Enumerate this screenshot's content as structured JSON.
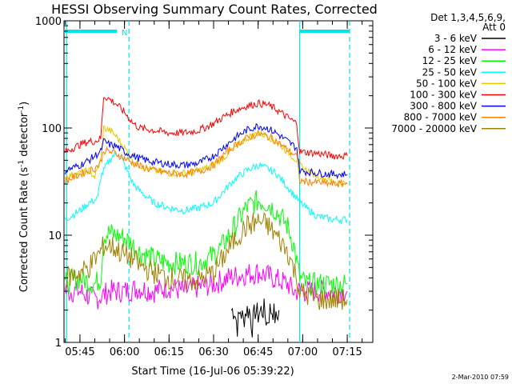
{
  "chart_data": {
    "type": "line",
    "title": "HESSI Observing Summary Count Rates, Corrected",
    "xlabel": "Start Time (16-Jul-06 05:39:22)",
    "ylabel_main": "Corrected Count Rate (s",
    "ylabel_sup1": "-1",
    "ylabel_mid": " detector",
    "ylabel_sup2": "-1",
    "ylabel_end": ")",
    "yscale": "log",
    "ylim": [
      1,
      1000
    ],
    "xlim_minutes": [
      -5.37,
      98.6
    ],
    "x_ticks": [
      {
        "label": "05:45",
        "minute": 0
      },
      {
        "label": "06:00",
        "minute": 15
      },
      {
        "label": "06:15",
        "minute": 30
      },
      {
        "label": "06:30",
        "minute": 45
      },
      {
        "label": "06:45",
        "minute": 60
      },
      {
        "label": "07:00",
        "minute": 75
      },
      {
        "label": "07:15",
        "minute": 90
      }
    ],
    "y_ticks": [
      {
        "label": "1",
        "value": 1
      },
      {
        "label": "10",
        "value": 10
      },
      {
        "label": "100",
        "value": 100
      },
      {
        "label": "1000",
        "value": 1000
      }
    ],
    "legend_title_line1": "Det 1,3,4,5,6,9,",
    "legend_title_line2": "Att 0",
    "legend_placement": "right",
    "annotation_n": "N",
    "footer_date": "2-Mar-2010 07:59",
    "vertical_lines_minutes": [
      {
        "minute": -4.5,
        "style": "solid",
        "color": "#00e6e6"
      },
      {
        "minute": 16.5,
        "style": "dashed",
        "color": "#00e6e6"
      },
      {
        "minute": 74.0,
        "style": "solid",
        "color": "#00e6e6"
      },
      {
        "minute": 90.8,
        "style": "dashed",
        "color": "#00e6e6"
      }
    ],
    "top_bars": [
      {
        "x0": -5.4,
        "x1": 12.5,
        "value": 800
      },
      {
        "x0": 74.0,
        "x1": 90.8,
        "value": 800
      }
    ],
    "series": [
      {
        "name": "3 - 6 keV",
        "color": "#000000",
        "points": [
          [
            51,
            2
          ],
          [
            52,
            2
          ],
          [
            53,
            1.4
          ],
          [
            54,
            2
          ],
          [
            55,
            1.6
          ],
          [
            56,
            2
          ],
          [
            57,
            2
          ],
          [
            58,
            1.4
          ],
          [
            59,
            2
          ],
          [
            60,
            1.8
          ],
          [
            61,
            2
          ],
          [
            62,
            2
          ],
          [
            63,
            1.5
          ],
          [
            64,
            2
          ],
          [
            65,
            2
          ],
          [
            66,
            1.6
          ],
          [
            67,
            2
          ]
        ]
      },
      {
        "name": "6 - 12 keV",
        "color": "#ff00ff",
        "points": [
          [
            -5,
            3
          ],
          [
            0,
            3
          ],
          [
            5,
            2.5
          ],
          [
            10,
            3
          ],
          [
            15,
            3
          ],
          [
            20,
            3.2
          ],
          [
            25,
            3
          ],
          [
            30,
            3.3
          ],
          [
            35,
            3
          ],
          [
            40,
            3.3
          ],
          [
            45,
            3.5
          ],
          [
            50,
            4
          ],
          [
            55,
            4.3
          ],
          [
            60,
            4.5
          ],
          [
            65,
            4
          ],
          [
            70,
            3.5
          ],
          [
            72,
            3
          ],
          [
            75,
            3
          ],
          [
            80,
            3
          ],
          [
            85,
            3
          ],
          [
            90,
            3
          ]
        ]
      },
      {
        "name": "12 - 25 keV",
        "color": "#00ff00",
        "points": [
          [
            -5,
            3.5
          ],
          [
            0,
            4
          ],
          [
            5,
            3.5
          ],
          [
            7,
            4
          ],
          [
            8,
            10
          ],
          [
            10,
            10.5
          ],
          [
            12,
            10
          ],
          [
            15,
            9.5
          ],
          [
            18,
            8
          ],
          [
            20,
            7
          ],
          [
            25,
            6
          ],
          [
            30,
            5.5
          ],
          [
            35,
            5.5
          ],
          [
            40,
            5.5
          ],
          [
            45,
            6.5
          ],
          [
            48,
            8
          ],
          [
            52,
            12
          ],
          [
            56,
            18
          ],
          [
            60,
            21
          ],
          [
            63,
            20
          ],
          [
            66,
            17
          ],
          [
            70,
            12
          ],
          [
            72,
            8
          ],
          [
            74,
            4
          ],
          [
            76,
            3.5
          ],
          [
            80,
            3.5
          ],
          [
            85,
            3.5
          ],
          [
            90,
            3.5
          ]
        ]
      },
      {
        "name": "25 - 50 keV",
        "color": "#00ffff",
        "points": [
          [
            -5,
            14
          ],
          [
            0,
            17
          ],
          [
            3,
            20
          ],
          [
            6,
            22
          ],
          [
            7,
            35
          ],
          [
            9,
            45
          ],
          [
            11,
            55
          ],
          [
            13,
            58
          ],
          [
            15,
            45
          ],
          [
            18,
            30
          ],
          [
            20,
            26
          ],
          [
            25,
            20
          ],
          [
            30,
            18
          ],
          [
            35,
            17
          ],
          [
            40,
            18
          ],
          [
            45,
            20
          ],
          [
            48,
            25
          ],
          [
            52,
            33
          ],
          [
            56,
            40
          ],
          [
            60,
            45
          ],
          [
            63,
            42
          ],
          [
            66,
            38
          ],
          [
            70,
            28
          ],
          [
            73,
            22
          ],
          [
            76,
            18
          ],
          [
            80,
            15
          ],
          [
            85,
            14
          ],
          [
            90,
            14
          ]
        ]
      },
      {
        "name": "50 - 100 keV",
        "color": "#e6c800",
        "points": [
          [
            -5,
            35
          ],
          [
            0,
            38
          ],
          [
            3,
            40
          ],
          [
            5,
            35
          ],
          [
            7,
            50
          ],
          [
            8,
            100
          ],
          [
            10,
            95
          ],
          [
            12,
            85
          ],
          [
            15,
            65
          ],
          [
            18,
            50
          ],
          [
            20,
            45
          ],
          [
            25,
            40
          ],
          [
            30,
            38
          ],
          [
            35,
            38
          ],
          [
            40,
            40
          ],
          [
            45,
            45
          ],
          [
            48,
            52
          ],
          [
            52,
            65
          ],
          [
            56,
            80
          ],
          [
            60,
            90
          ],
          [
            63,
            85
          ],
          [
            66,
            75
          ],
          [
            70,
            60
          ],
          [
            73,
            50
          ],
          [
            75,
            42
          ],
          [
            80,
            36
          ],
          [
            85,
            32
          ],
          [
            90,
            30
          ]
        ]
      },
      {
        "name": "100 - 300 keV",
        "color": "#ff0000",
        "points": [
          [
            -5,
            60
          ],
          [
            0,
            70
          ],
          [
            3,
            75
          ],
          [
            5,
            75
          ],
          [
            7,
            80
          ],
          [
            8,
            200
          ],
          [
            10,
            185
          ],
          [
            12,
            170
          ],
          [
            15,
            140
          ],
          [
            18,
            110
          ],
          [
            20,
            100
          ],
          [
            25,
            95
          ],
          [
            30,
            90
          ],
          [
            35,
            90
          ],
          [
            40,
            95
          ],
          [
            45,
            110
          ],
          [
            48,
            125
          ],
          [
            52,
            145
          ],
          [
            56,
            160
          ],
          [
            60,
            170
          ],
          [
            63,
            165
          ],
          [
            66,
            150
          ],
          [
            70,
            125
          ],
          [
            73,
            110
          ],
          [
            74,
            60
          ],
          [
            80,
            58
          ],
          [
            85,
            55
          ],
          [
            90,
            55
          ]
        ]
      },
      {
        "name": "300 - 800 keV",
        "color": "#0000ff",
        "points": [
          [
            -5,
            40
          ],
          [
            0,
            45
          ],
          [
            3,
            50
          ],
          [
            5,
            55
          ],
          [
            7,
            60
          ],
          [
            8,
            75
          ],
          [
            10,
            70
          ],
          [
            12,
            68
          ],
          [
            15,
            60
          ],
          [
            18,
            55
          ],
          [
            20,
            52
          ],
          [
            25,
            48
          ],
          [
            30,
            46
          ],
          [
            35,
            45
          ],
          [
            40,
            47
          ],
          [
            45,
            55
          ],
          [
            48,
            65
          ],
          [
            52,
            80
          ],
          [
            56,
            95
          ],
          [
            60,
            105
          ],
          [
            63,
            100
          ],
          [
            66,
            90
          ],
          [
            70,
            75
          ],
          [
            73,
            65
          ],
          [
            74,
            40
          ],
          [
            80,
            38
          ],
          [
            85,
            37
          ],
          [
            90,
            37
          ]
        ]
      },
      {
        "name": "800 - 7000 keV",
        "color": "#ff8000",
        "points": [
          [
            -5,
            32
          ],
          [
            0,
            37
          ],
          [
            3,
            40
          ],
          [
            5,
            42
          ],
          [
            7,
            48
          ],
          [
            8,
            62
          ],
          [
            10,
            60
          ],
          [
            12,
            58
          ],
          [
            15,
            52
          ],
          [
            18,
            47
          ],
          [
            20,
            44
          ],
          [
            25,
            40
          ],
          [
            30,
            38
          ],
          [
            35,
            37
          ],
          [
            40,
            39
          ],
          [
            45,
            45
          ],
          [
            48,
            55
          ],
          [
            52,
            68
          ],
          [
            56,
            80
          ],
          [
            60,
            88
          ],
          [
            63,
            84
          ],
          [
            66,
            76
          ],
          [
            70,
            62
          ],
          [
            73,
            55
          ],
          [
            74,
            32
          ],
          [
            80,
            31
          ],
          [
            85,
            30
          ],
          [
            90,
            30
          ]
        ]
      },
      {
        "name": "7000 - 20000 keV",
        "color": "#a08000",
        "points": [
          [
            -5,
            4
          ],
          [
            0,
            4.5
          ],
          [
            3,
            5
          ],
          [
            5,
            6
          ],
          [
            7,
            7
          ],
          [
            8,
            8
          ],
          [
            10,
            8
          ],
          [
            12,
            7.5
          ],
          [
            15,
            6.5
          ],
          [
            18,
            6
          ],
          [
            20,
            5.2
          ],
          [
            25,
            4.5
          ],
          [
            30,
            4
          ],
          [
            35,
            3.8
          ],
          [
            40,
            3.8
          ],
          [
            45,
            4.5
          ],
          [
            48,
            6
          ],
          [
            52,
            9
          ],
          [
            56,
            12
          ],
          [
            60,
            13.5
          ],
          [
            63,
            12.5
          ],
          [
            66,
            10
          ],
          [
            70,
            7
          ],
          [
            73,
            4
          ],
          [
            74,
            3
          ],
          [
            80,
            2.5
          ],
          [
            85,
            2.5
          ],
          [
            90,
            2.5
          ]
        ]
      }
    ]
  }
}
